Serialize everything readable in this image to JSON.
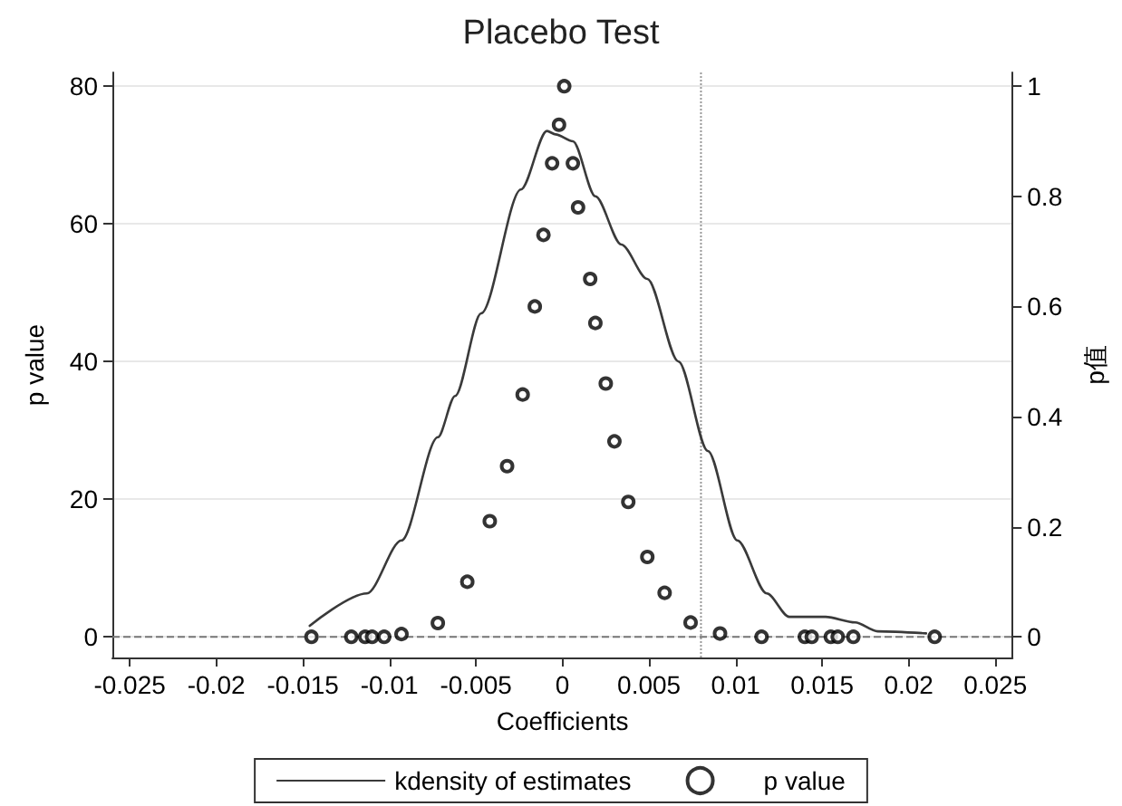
{
  "chart_data": {
    "type": "line",
    "title": "Placebo Test",
    "xlabel": "Coefficients",
    "ylabel": "p value",
    "y2label": "p值",
    "xlim": [
      -0.026,
      0.026
    ],
    "xticks": [
      -0.025,
      -0.02,
      -0.015,
      -0.01,
      -0.005,
      0,
      0.005,
      0.01,
      0.015,
      0.02,
      0.025
    ],
    "ylim": [
      -3,
      82
    ],
    "yticks": [
      0,
      20,
      40,
      60,
      80
    ],
    "y2lim": [
      -0.0375,
      1.025
    ],
    "y2ticks": [
      0,
      0.2,
      0.4,
      0.6,
      0.8,
      1
    ],
    "grid": "y",
    "legend": "bottom",
    "ref_lines": [
      {
        "axis": "x",
        "value": 0.008,
        "color": "#999999",
        "line_style": "dotted"
      },
      {
        "axis": "y",
        "value": 0,
        "color": "#777777",
        "line_style": "dashed"
      }
    ],
    "series": [
      {
        "name": "kdensity of estimates",
        "color": "#3a3a3a",
        "marker": "none",
        "line_style": "solid",
        "x": [
          -0.0146,
          -0.0113,
          -0.0093,
          -0.0072,
          -0.0062,
          -0.0047,
          -0.0024,
          -0.0009,
          -0.0004,
          0.0006,
          0.0019,
          0.0034,
          0.0049,
          0.0067,
          0.0084,
          0.0101,
          0.0118,
          0.0131,
          0.0152,
          0.0169,
          0.0182,
          0.021
        ],
        "values": [
          1.6,
          6.3,
          14,
          29,
          35,
          47,
          65,
          73.5,
          73,
          72,
          64,
          57,
          52,
          40,
          27,
          14,
          6.3,
          2.9,
          2.9,
          2.1,
          0.8,
          0.5
        ]
      },
      {
        "name": "p value",
        "type": "scatter",
        "axis": "y2",
        "color": "#000000",
        "marker": "circle",
        "x": [
          -0.0145,
          -0.0122,
          -0.0114,
          -0.011,
          -0.0103,
          -0.0093,
          -0.0072,
          -0.0055,
          -0.0042,
          -0.0032,
          -0.0023,
          -0.0016,
          -0.0011,
          -0.0006,
          -0.0002,
          0.0001,
          0.0006,
          0.0009,
          0.0016,
          0.0019,
          0.0025,
          0.003,
          0.0038,
          0.0049,
          0.0059,
          0.0074,
          0.0091,
          0.0115,
          0.014,
          0.0144,
          0.0155,
          0.0159,
          0.0168,
          0.0215
        ],
        "values": [
          0,
          0,
          0,
          0,
          0,
          0.005,
          0.025,
          0.1,
          0.21,
          0.31,
          0.44,
          0.6,
          0.73,
          0.86,
          0.93,
          1,
          0.86,
          0.78,
          0.65,
          0.57,
          0.46,
          0.355,
          0.245,
          0.145,
          0.08,
          0.026,
          0.006,
          0,
          0,
          0,
          0,
          0,
          0,
          0
        ]
      }
    ]
  }
}
